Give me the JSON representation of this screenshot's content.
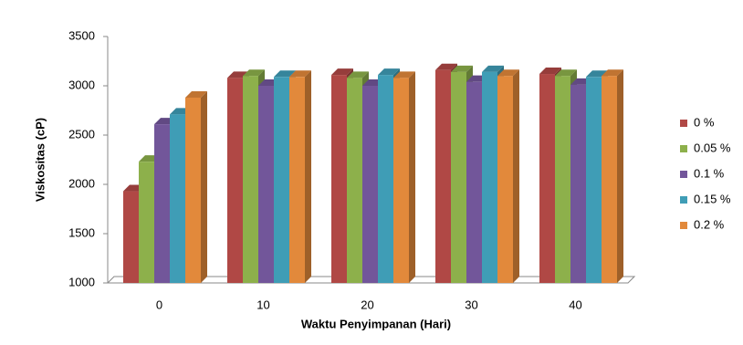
{
  "chart_data": {
    "type": "bar3d",
    "y_label": "Viskositas (cP)",
    "x_label": "Waktu Penyimpanan (Hari)",
    "categories": [
      "0",
      "10",
      "20",
      "30",
      "40"
    ],
    "series": [
      {
        "name": "0 %",
        "color": "#b04845",
        "values": [
          1930,
          3080,
          3110,
          3160,
          3120
        ]
      },
      {
        "name": "0.05 %",
        "color": "#8db04b",
        "values": [
          2230,
          3100,
          3080,
          3140,
          3100
        ]
      },
      {
        "name": "0.1 %",
        "color": "#72569a",
        "values": [
          2610,
          3000,
          3000,
          3040,
          3010
        ]
      },
      {
        "name": "0.15 %",
        "color": "#3f9db6",
        "values": [
          2710,
          3090,
          3110,
          3140,
          3090
        ]
      },
      {
        "name": "0.2 %",
        "color": "#e2893b",
        "values": [
          2880,
          3090,
          3080,
          3100,
          3100
        ]
      }
    ],
    "ylim": [
      1000,
      3500
    ],
    "yticks": [
      1000,
      1500,
      2000,
      2500,
      3000,
      3500
    ],
    "legend": "right"
  }
}
